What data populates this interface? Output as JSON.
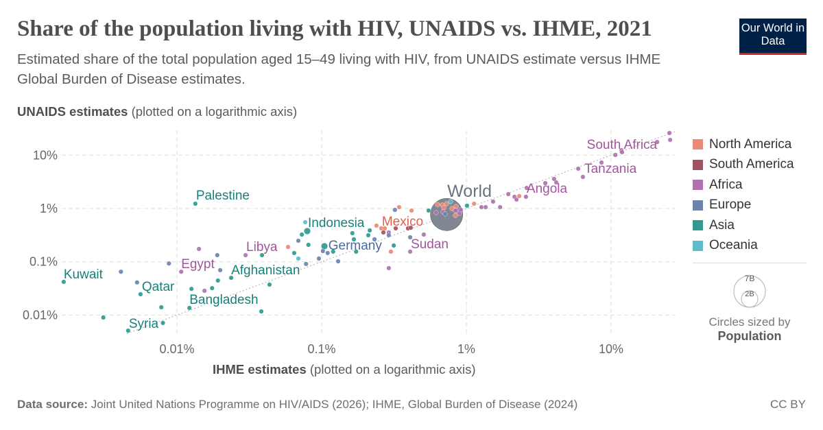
{
  "header": {
    "title": "Share of the population living with HIV, UNAIDS vs. IHME, 2021",
    "subtitle": "Estimated share of the total population aged 15–49 living with HIV, from UNAIDS estimate versus IHME Global Burden of Disease estimates.",
    "logo": "Our World in Data"
  },
  "footer": {
    "source_label": "Data source:",
    "source": "Joint United Nations Programme on HIV/AIDS (2026); IHME, Global Burden of Disease (2024)",
    "license": "CC BY"
  },
  "size_legend": {
    "big": "7B",
    "small": "2B",
    "caption": "Circles sized by",
    "variable": "Population"
  },
  "chart_data": {
    "type": "scatter",
    "title": "Share of the population living with HIV, UNAIDS vs. IHME, 2021",
    "xlabel_bold": "IHME estimates",
    "xlabel_rest": "(plotted on a logarithmic axis)",
    "ylabel_bold": "UNAIDS estimates",
    "ylabel_rest": "(plotted on a logarithmic axis)",
    "xscale": "log",
    "yscale": "log",
    "unit": "%",
    "xlim": [
      0.0015,
      28
    ],
    "ylim": [
      0.0045,
      28
    ],
    "xticks": [
      {
        "v": 0.01,
        "label": "0.01%"
      },
      {
        "v": 0.1,
        "label": "0.1%"
      },
      {
        "v": 1,
        "label": "1%"
      },
      {
        "v": 10,
        "label": "10%"
      }
    ],
    "yticks": [
      {
        "v": 0.01,
        "label": "0.01%"
      },
      {
        "v": 0.1,
        "label": "0.1%"
      },
      {
        "v": 1,
        "label": "1%"
      },
      {
        "v": 10,
        "label": "10%"
      }
    ],
    "grid": true,
    "reference_line": "y = x (dotted)",
    "legend_position": "right",
    "regions": [
      {
        "name": "North America",
        "color": "#E98A76",
        "label_color": "#E0604A"
      },
      {
        "name": "South America",
        "color": "#A0525E",
        "label_color": "#8E3F4E"
      },
      {
        "name": "Africa",
        "color": "#B071B0",
        "label_color": "#A2559C"
      },
      {
        "name": "Europe",
        "color": "#6D83AE",
        "label_color": "#4C6A9C"
      },
      {
        "name": "Asia",
        "color": "#2F9A8F",
        "label_color": "#17807A"
      },
      {
        "name": "Oceania",
        "color": "#5DBCCB",
        "label_color": "#3AA5B5"
      }
    ],
    "world": {
      "label": "World",
      "x": 0.73,
      "y": 0.77,
      "color": "#6B7280"
    },
    "points": [
      {
        "r": "Asia",
        "x": 0.0134,
        "y": 1.23,
        "label": "Palestine"
      },
      {
        "r": "Asia",
        "x": 0.00165,
        "y": 0.042,
        "label": "Kuwait"
      },
      {
        "r": "Europe",
        "x": 0.0041,
        "y": 0.065
      },
      {
        "r": "Europe",
        "x": 0.0088,
        "y": 0.093
      },
      {
        "r": "Europe",
        "x": 0.0053,
        "y": 0.041
      },
      {
        "r": "Asia",
        "x": 0.0056,
        "y": 0.0246,
        "label": "Qatar"
      },
      {
        "r": "Asia",
        "x": 0.0031,
        "y": 0.009
      },
      {
        "r": "Asia",
        "x": 0.0046,
        "y": 0.0051,
        "label": "Syria"
      },
      {
        "r": "Asia",
        "x": 0.008,
        "y": 0.0071
      },
      {
        "r": "Asia",
        "x": 0.0078,
        "y": 0.014
      },
      {
        "r": "Asia",
        "x": 0.0122,
        "y": 0.0136,
        "label": "Bangladesh"
      },
      {
        "r": "Asia",
        "x": 0.0126,
        "y": 0.031
      },
      {
        "r": "Africa",
        "x": 0.0107,
        "y": 0.065,
        "label": "Egypt"
      },
      {
        "r": "Africa",
        "x": 0.0142,
        "y": 0.174
      },
      {
        "r": "Africa",
        "x": 0.0155,
        "y": 0.0286
      },
      {
        "r": "Asia",
        "x": 0.0175,
        "y": 0.032
      },
      {
        "r": "Asia",
        "x": 0.0192,
        "y": 0.0445
      },
      {
        "r": "Europe",
        "x": 0.019,
        "y": 0.133
      },
      {
        "r": "Europe",
        "x": 0.0199,
        "y": 0.0695
      },
      {
        "r": "Asia",
        "x": 0.0237,
        "y": 0.05,
        "label": "Afghanistan"
      },
      {
        "r": "Africa",
        "x": 0.0298,
        "y": 0.133,
        "label": "Libya"
      },
      {
        "r": "Asia",
        "x": 0.0387,
        "y": 0.133
      },
      {
        "r": "Asia",
        "x": 0.0436,
        "y": 0.0373
      },
      {
        "r": "Asia",
        "x": 0.0383,
        "y": 0.0117
      },
      {
        "r": "North America",
        "x": 0.0586,
        "y": 0.19
      },
      {
        "r": "Asia",
        "x": 0.0646,
        "y": 0.146
      },
      {
        "r": "Europe",
        "x": 0.069,
        "y": 0.248
      },
      {
        "r": "Oceania",
        "x": 0.069,
        "y": 0.115
      },
      {
        "r": "Asia",
        "x": 0.073,
        "y": 0.324
      },
      {
        "r": "Oceania",
        "x": 0.077,
        "y": 0.553
      },
      {
        "r": "Asia",
        "x": 0.0795,
        "y": 0.376,
        "label": "Indonesia",
        "big": true
      },
      {
        "r": "Asia",
        "x": 0.081,
        "y": 0.208
      },
      {
        "r": "Europe",
        "x": 0.0957,
        "y": 0.115
      },
      {
        "r": "Asia",
        "x": 0.1045,
        "y": 0.196,
        "big": true
      },
      {
        "r": "Europe",
        "x": 0.102,
        "y": 0.159
      },
      {
        "r": "Europe",
        "x": 0.078,
        "y": 0.091
      },
      {
        "r": "Europe",
        "x": 0.11,
        "y": 0.146,
        "label": "Germany"
      },
      {
        "r": "Europe",
        "x": 0.13,
        "y": 0.102
      },
      {
        "r": "Asia",
        "x": 0.12,
        "y": 0.155
      },
      {
        "r": "Asia",
        "x": 0.163,
        "y": 0.344
      },
      {
        "r": "Asia",
        "x": 0.167,
        "y": 0.264
      },
      {
        "r": "Asia",
        "x": 0.173,
        "y": 0.155
      },
      {
        "r": "Asia",
        "x": 0.21,
        "y": 0.315
      },
      {
        "r": "Asia",
        "x": 0.215,
        "y": 0.388
      },
      {
        "r": "Europe",
        "x": 0.232,
        "y": 0.264
      },
      {
        "r": "North America",
        "x": 0.239,
        "y": 0.477
      },
      {
        "r": "North America",
        "x": 0.258,
        "y": 0.424,
        "label": "Mexico"
      },
      {
        "r": "North America",
        "x": 0.273,
        "y": 0.424
      },
      {
        "r": "South America",
        "x": 0.267,
        "y": 0.355
      },
      {
        "r": "Africa",
        "x": 0.291,
        "y": 0.355
      },
      {
        "r": "Europe",
        "x": 0.291,
        "y": 0.315
      },
      {
        "r": "South America",
        "x": 0.325,
        "y": 0.424
      },
      {
        "r": "Asia",
        "x": 0.315,
        "y": 0.202
      },
      {
        "r": "North America",
        "x": 0.301,
        "y": 0.155
      },
      {
        "r": "Africa",
        "x": 0.291,
        "y": 0.076
      },
      {
        "r": "Europe",
        "x": 0.321,
        "y": 0.94
      },
      {
        "r": "North America",
        "x": 0.343,
        "y": 1.06
      },
      {
        "r": "South America",
        "x": 0.395,
        "y": 0.424
      },
      {
        "r": "South America",
        "x": 0.413,
        "y": 0.436
      },
      {
        "r": "Europe",
        "x": 0.409,
        "y": 0.288
      },
      {
        "r": "Africa",
        "x": 0.409,
        "y": 0.155,
        "label": "Sudan"
      },
      {
        "r": "Africa",
        "x": 0.508,
        "y": 0.324
      },
      {
        "r": "North America",
        "x": 0.418,
        "y": 0.915
      },
      {
        "r": "Asia",
        "x": 0.548,
        "y": 0.915
      },
      {
        "r": "North America",
        "x": 0.632,
        "y": 1.19
      },
      {
        "r": "North America",
        "x": 0.683,
        "y": 1.16
      },
      {
        "r": "North America",
        "x": 0.729,
        "y": 1.23
      },
      {
        "r": "North America",
        "x": 0.698,
        "y": 1.03
      },
      {
        "r": "North America",
        "x": 0.849,
        "y": 1.09
      },
      {
        "r": "North America",
        "x": 0.84,
        "y": 0.743
      },
      {
        "r": "North America",
        "x": 0.795,
        "y": 1.0
      },
      {
        "r": "Oceania",
        "x": 0.778,
        "y": 1.35
      },
      {
        "r": "Africa",
        "x": 0.618,
        "y": 0.838
      },
      {
        "r": "Africa",
        "x": 0.69,
        "y": 0.863
      },
      {
        "r": "Africa",
        "x": 0.84,
        "y": 0.915
      },
      {
        "r": "Africa",
        "x": 0.897,
        "y": 0.813
      },
      {
        "r": "Africa",
        "x": 0.916,
        "y": 0.942
      },
      {
        "r": "Europe",
        "x": 0.713,
        "y": 0.789
      },
      {
        "r": "Asia",
        "x": 1.01,
        "y": 1.13
      },
      {
        "r": "North America",
        "x": 1.13,
        "y": 1.23
      },
      {
        "r": "Africa",
        "x": 1.27,
        "y": 1.06
      },
      {
        "r": "Africa",
        "x": 1.36,
        "y": 1.06
      },
      {
        "r": "Africa",
        "x": 1.53,
        "y": 1.35
      },
      {
        "r": "Africa",
        "x": 1.71,
        "y": 1.06
      },
      {
        "r": "Africa",
        "x": 1.95,
        "y": 1.86
      },
      {
        "r": "Africa",
        "x": 2.15,
        "y": 1.66
      },
      {
        "r": "Africa",
        "x": 2.22,
        "y": 1.47
      },
      {
        "r": "North America",
        "x": 2.32,
        "y": 1.71
      },
      {
        "r": "Africa",
        "x": 2.58,
        "y": 1.66
      },
      {
        "r": "Africa",
        "x": 2.61,
        "y": 2.43,
        "label": "Angola"
      },
      {
        "r": "Africa",
        "x": 3.51,
        "y": 2.99
      },
      {
        "r": "Africa",
        "x": 4.04,
        "y": 3.58
      },
      {
        "r": "Africa",
        "x": 4.18,
        "y": 3.08
      },
      {
        "r": "Africa",
        "x": 5.93,
        "y": 5.58,
        "label": "Tanzania"
      },
      {
        "r": "Africa",
        "x": 6.39,
        "y": 3.91
      },
      {
        "r": "Africa",
        "x": 8.59,
        "y": 7.28
      },
      {
        "r": "Africa",
        "x": 10.7,
        "y": 10.1
      },
      {
        "r": "Africa",
        "x": 11.8,
        "y": 12.4
      },
      {
        "r": "Africa",
        "x": 11.9,
        "y": 11.4
      },
      {
        "r": "Africa",
        "x": 20.8,
        "y": 17.7,
        "label": "South Africa"
      },
      {
        "r": "Africa",
        "x": 25.3,
        "y": 26.1
      },
      {
        "r": "Africa",
        "x": 25.6,
        "y": 19.4
      }
    ]
  }
}
